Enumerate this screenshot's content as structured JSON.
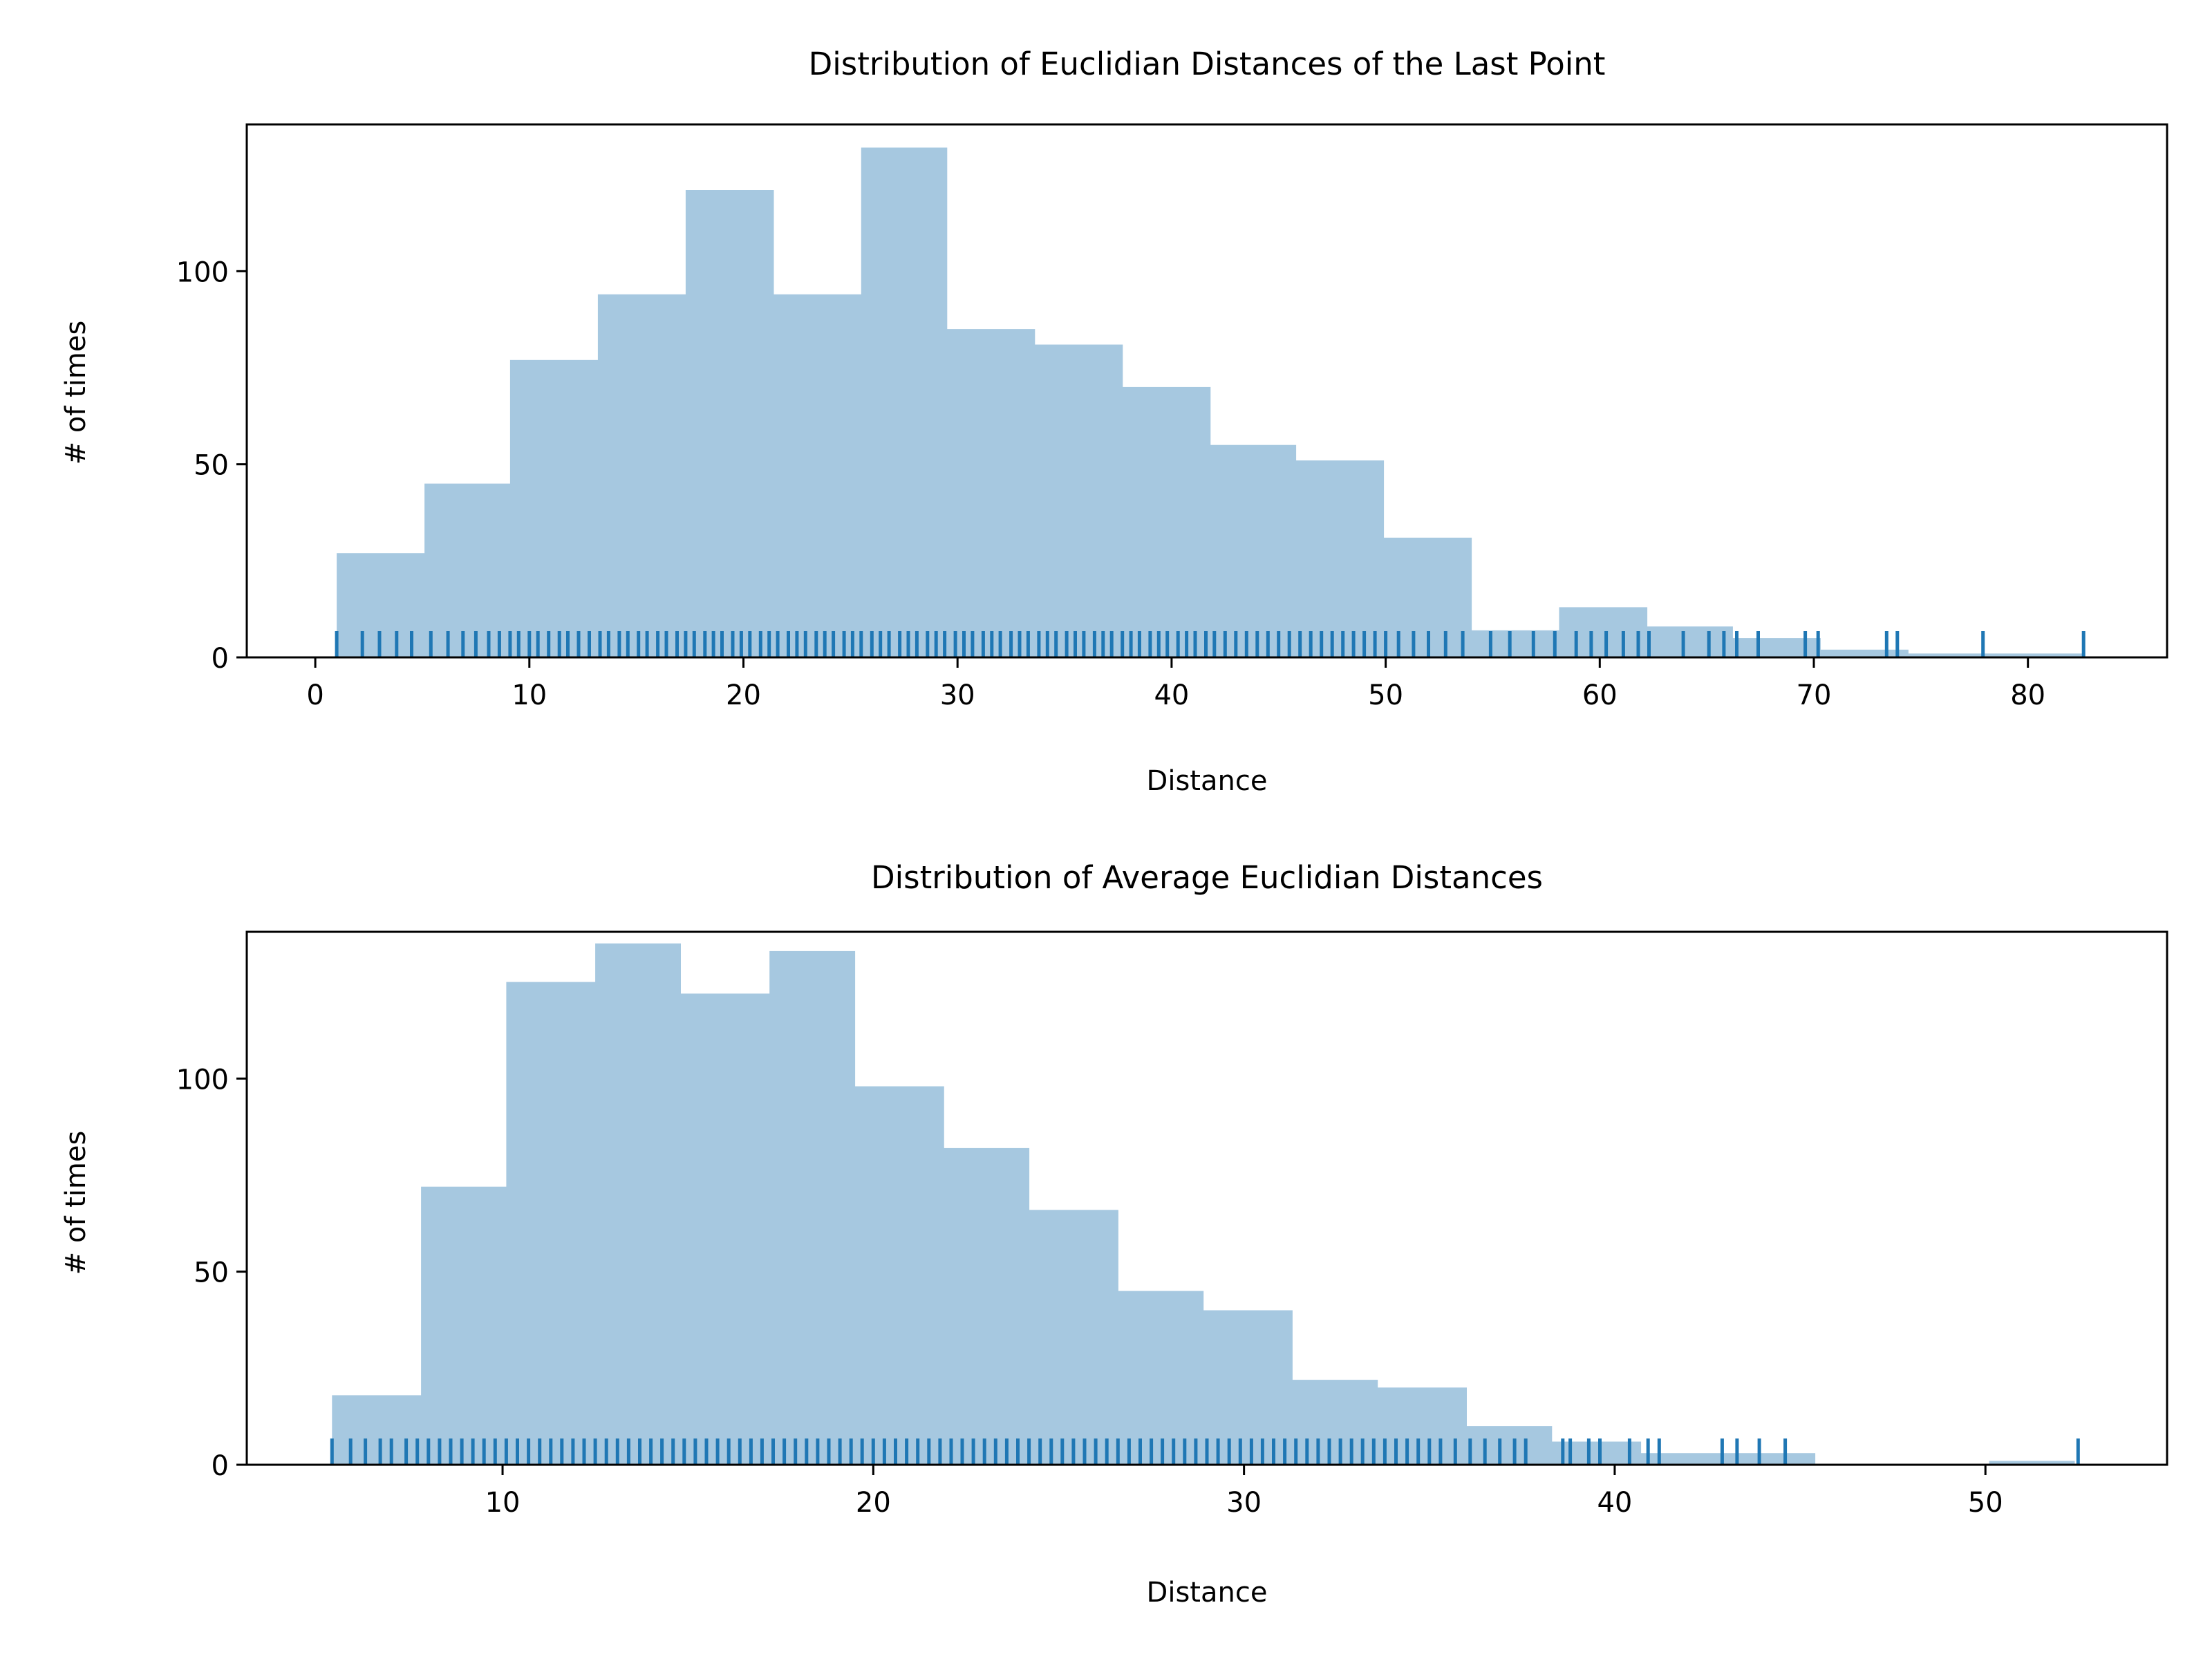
{
  "chart_data": [
    {
      "type": "bar",
      "title": "Distribution of Euclidian Distances of the Last Point",
      "xlabel": "Distance",
      "ylabel": "# of times",
      "xlim": [
        -3.2,
        86.5
      ],
      "ylim": [
        0,
        138
      ],
      "xticks": [
        0,
        10,
        20,
        30,
        40,
        50,
        60,
        70,
        80
      ],
      "yticks": [
        0,
        50,
        100
      ],
      "bins": {
        "edges": [
          1.0,
          5.1,
          9.1,
          13.2,
          17.3,
          21.4,
          25.5,
          29.5,
          33.6,
          37.7,
          41.8,
          45.8,
          49.9,
          54.0,
          58.1,
          62.2,
          66.2,
          70.3,
          74.4,
          78.5,
          82.6
        ],
        "counts": [
          27,
          45,
          77,
          94,
          121,
          94,
          132,
          85,
          81,
          70,
          55,
          51,
          31,
          7,
          13,
          8,
          5,
          2,
          1,
          1
        ]
      },
      "rug": [
        1.0,
        2.2,
        3.0,
        3.8,
        4.5,
        5.4,
        6.2,
        6.9,
        7.5,
        8.1,
        8.6,
        9.1,
        9.5,
        10.0,
        10.4,
        10.9,
        11.4,
        11.8,
        12.3,
        12.8,
        13.3,
        13.7,
        14.2,
        14.6,
        15.1,
        15.5,
        16.0,
        16.4,
        16.9,
        17.3,
        17.7,
        18.2,
        18.6,
        19.0,
        19.5,
        19.9,
        20.3,
        20.8,
        21.2,
        21.6,
        22.1,
        22.5,
        22.9,
        23.4,
        23.8,
        24.2,
        24.7,
        25.1,
        25.5,
        26.0,
        26.4,
        26.8,
        27.3,
        27.7,
        28.1,
        28.6,
        29.0,
        29.4,
        29.9,
        30.3,
        30.7,
        31.2,
        31.6,
        32.0,
        32.5,
        32.9,
        33.3,
        33.8,
        34.2,
        34.6,
        35.1,
        35.5,
        35.9,
        36.4,
        36.8,
        37.2,
        37.7,
        38.1,
        38.5,
        39.0,
        39.4,
        39.8,
        40.3,
        40.7,
        41.1,
        41.6,
        42.0,
        42.5,
        43.0,
        43.5,
        44.0,
        44.5,
        45.0,
        45.5,
        46.0,
        46.5,
        47.0,
        47.5,
        48.0,
        48.5,
        49.0,
        49.5,
        50.0,
        50.6,
        51.3,
        52.0,
        52.8,
        53.6,
        54.9,
        55.8,
        56.9,
        57.9,
        58.9,
        59.6,
        60.3,
        61.1,
        61.8,
        62.3,
        63.9,
        65.1,
        65.8,
        66.4,
        67.4,
        69.6,
        70.2,
        73.4,
        73.9,
        77.9,
        82.6
      ],
      "style": {
        "bar_color": "#a6c8e0",
        "rug_color": "#1f77b4"
      }
    },
    {
      "type": "bar",
      "title": "Distribution of Average Euclidian Distances",
      "xlabel": "Distance",
      "ylabel": "# of times",
      "xlim": [
        3.1,
        54.9
      ],
      "ylim": [
        0,
        138
      ],
      "xticks": [
        10,
        20,
        30,
        40,
        50
      ],
      "yticks": [
        0,
        50,
        100
      ],
      "bins": {
        "edges": [
          5.4,
          7.8,
          10.1,
          12.5,
          14.8,
          17.2,
          19.5,
          21.9,
          24.2,
          26.6,
          28.9,
          31.3,
          33.6,
          36.0,
          38.3,
          40.7,
          43.0,
          45.4,
          47.7,
          50.1,
          52.4
        ],
        "counts": [
          18,
          72,
          125,
          135,
          122,
          133,
          98,
          82,
          66,
          45,
          40,
          22,
          20,
          10,
          6,
          3,
          3,
          0,
          0,
          1
        ]
      },
      "rug": [
        5.4,
        5.9,
        6.3,
        6.7,
        7.0,
        7.4,
        7.7,
        8.0,
        8.3,
        8.6,
        8.9,
        9.2,
        9.5,
        9.8,
        10.1,
        10.4,
        10.7,
        11.0,
        11.3,
        11.6,
        11.9,
        12.2,
        12.5,
        12.8,
        13.1,
        13.4,
        13.7,
        14.0,
        14.3,
        14.6,
        14.9,
        15.2,
        15.5,
        15.8,
        16.1,
        16.4,
        16.7,
        17.0,
        17.3,
        17.6,
        17.9,
        18.2,
        18.5,
        18.8,
        19.1,
        19.4,
        19.7,
        20.0,
        20.3,
        20.6,
        20.9,
        21.2,
        21.5,
        21.8,
        22.1,
        22.4,
        22.7,
        23.0,
        23.3,
        23.6,
        23.9,
        24.2,
        24.5,
        24.8,
        25.1,
        25.4,
        25.7,
        26.0,
        26.3,
        26.6,
        26.9,
        27.2,
        27.5,
        27.8,
        28.1,
        28.4,
        28.7,
        29.0,
        29.3,
        29.6,
        29.9,
        30.2,
        30.5,
        30.8,
        31.1,
        31.4,
        31.7,
        32.0,
        32.3,
        32.6,
        32.9,
        33.2,
        33.5,
        33.8,
        34.1,
        34.4,
        34.7,
        35.0,
        35.3,
        35.7,
        36.1,
        36.5,
        36.9,
        37.3,
        37.6,
        38.6,
        38.8,
        39.3,
        39.6,
        40.4,
        40.9,
        41.2,
        42.9,
        43.3,
        43.9,
        44.6,
        52.5
      ],
      "style": {
        "bar_color": "#a6c8e0",
        "rug_color": "#1f77b4"
      }
    }
  ]
}
